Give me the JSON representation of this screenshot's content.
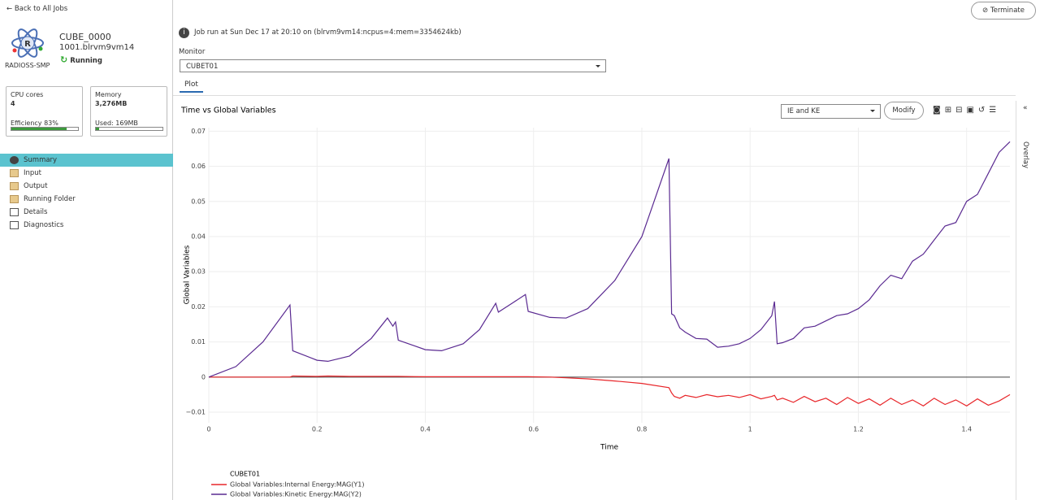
{
  "sidebar": {
    "back": "Back to All Jobs",
    "job_name": "CUBE_0000",
    "job_id": "1001.blrvm9vm14",
    "solver": "RADIOSS-SMP",
    "status": "Running",
    "cpu": {
      "label": "CPU cores",
      "value": "4",
      "efficiency_label": "Efficiency",
      "efficiency": "83%"
    },
    "memory": {
      "label": "Memory",
      "value": "3,276MB",
      "used": "Used: 169MB"
    },
    "nav": [
      "Summary",
      "Input",
      "Output",
      "Running Folder",
      "Details",
      "Diagnostics"
    ]
  },
  "header": {
    "terminate": "Terminate",
    "job_info": "Job run at Sun Dec 17 at 20:10 on (blrvm9vm14:ncpus=4:mem=3354624kb)",
    "monitor_label": "Monitor",
    "monitor_value": "CUBET01",
    "tab": "Plot",
    "preset": "IE and KE",
    "modify": "Modify",
    "overlay": "Overlay"
  },
  "chart_data": {
    "type": "line",
    "title": "Time vs Global Variables",
    "x_label": "Time",
    "y_label": "Global Variables",
    "legend_title": "CUBET01",
    "xlim": [
      0,
      1.48
    ],
    "xticks": [
      0,
      0.2,
      0.4,
      0.6,
      0.8,
      1,
      1.2,
      1.4
    ],
    "ylim": [
      -0.013,
      0.071
    ],
    "yticks": [
      {
        "value": -0.01,
        "label": "−0.01"
      },
      0,
      0.01,
      0.02,
      0.03,
      0.04,
      0.05,
      0.06,
      0.07
    ],
    "grid": true,
    "x": [
      0,
      0.05,
      0.1,
      0.15,
      0.155,
      0.2,
      0.22,
      0.26,
      0.3,
      0.33,
      0.34,
      0.345,
      0.35,
      0.4,
      0.43,
      0.47,
      0.5,
      0.53,
      0.535,
      0.56,
      0.585,
      0.59,
      0.63,
      0.66,
      0.7,
      0.75,
      0.8,
      0.85,
      0.855,
      0.86,
      0.87,
      0.88,
      0.9,
      0.92,
      0.94,
      0.96,
      0.98,
      1,
      1.02,
      1.04,
      1.045,
      1.05,
      1.06,
      1.08,
      1.1,
      1.12,
      1.14,
      1.16,
      1.18,
      1.2,
      1.22,
      1.24,
      1.26,
      1.28,
      1.3,
      1.32,
      1.34,
      1.36,
      1.38,
      1.4,
      1.42,
      1.44,
      1.46,
      1.48
    ],
    "series": [
      {
        "name": "Global Variables:Internal Energy:MAG(Y1)",
        "color": "#e8262a",
        "values": [
          0,
          0,
          0,
          0,
          0.0003,
          0.0002,
          0.0003,
          0.0002,
          0.0002,
          0.0002,
          0.0002,
          0.0002,
          0.0002,
          0.0001,
          0.0001,
          0.0001,
          0.0001,
          0.0001,
          0.0001,
          0.0001,
          0.0001,
          0.0001,
          0,
          -0.0002,
          -0.0005,
          -0.0011,
          -0.0018,
          -0.003,
          -0.0045,
          -0.0055,
          -0.006,
          -0.0052,
          -0.0058,
          -0.005,
          -0.0056,
          -0.0052,
          -0.0058,
          -0.005,
          -0.0062,
          -0.0055,
          -0.0052,
          -0.0065,
          -0.006,
          -0.0072,
          -0.0055,
          -0.007,
          -0.006,
          -0.0078,
          -0.0058,
          -0.0075,
          -0.0062,
          -0.008,
          -0.006,
          -0.0078,
          -0.0065,
          -0.0082,
          -0.006,
          -0.0078,
          -0.0065,
          -0.0082,
          -0.0062,
          -0.008,
          -0.0068,
          -0.005
        ]
      },
      {
        "name": "Global Variables:Kinetic Energy:MAG(Y2)",
        "color": "#5a2a91",
        "values": [
          0,
          0.003,
          0.01,
          0.0205,
          0.0075,
          0.0048,
          0.0045,
          0.006,
          0.011,
          0.0168,
          0.0145,
          0.0157,
          0.0105,
          0.0078,
          0.0075,
          0.0095,
          0.0135,
          0.021,
          0.0185,
          0.021,
          0.0235,
          0.0187,
          0.017,
          0.0168,
          0.0195,
          0.0275,
          0.04,
          0.0622,
          0.018,
          0.0175,
          0.014,
          0.0128,
          0.011,
          0.0108,
          0.0085,
          0.0088,
          0.0095,
          0.011,
          0.0135,
          0.0175,
          0.0215,
          0.0095,
          0.0098,
          0.011,
          0.014,
          0.0145,
          0.016,
          0.0175,
          0.018,
          0.0195,
          0.022,
          0.026,
          0.029,
          0.028,
          0.033,
          0.035,
          0.039,
          0.043,
          0.044,
          0.05,
          0.052,
          0.058,
          0.064,
          0.067
        ]
      }
    ]
  }
}
